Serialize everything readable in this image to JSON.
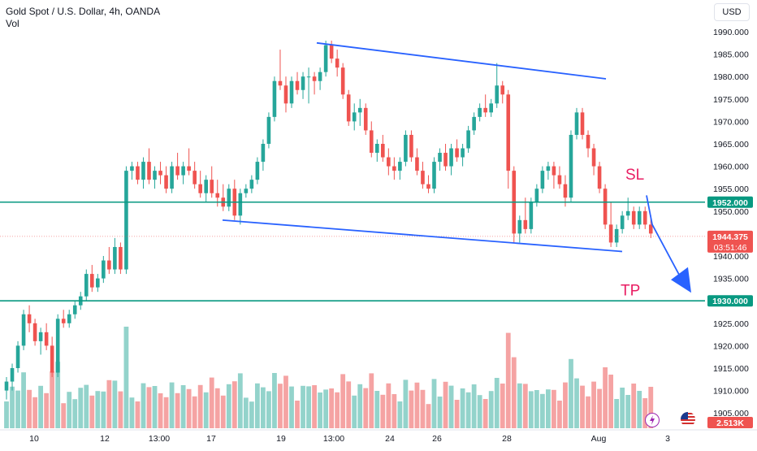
{
  "header": {
    "title": "Gold Spot / U.S. Dollar, 4h, OANDA",
    "volume_label": "Vol",
    "currency_button": "USD"
  },
  "annotations": {
    "sl_label": "SL",
    "tp_label": "TP"
  },
  "price_tags": {
    "resistance": "1952.000",
    "target": "1930.000",
    "current_price": "1944.375",
    "countdown": "03:51:46",
    "volume_value": "2.513K"
  },
  "colors": {
    "up": "#26a69a",
    "down": "#ef5350",
    "up_volume": "#93d3cb",
    "down_volume": "#f5a3a3",
    "channel": "#2962ff",
    "level": "#089981",
    "annotation": "#e91e63"
  },
  "icons": {
    "lightning": "lightning-icon",
    "flag": "us-flag-icon"
  },
  "chart_data": {
    "type": "candlestick",
    "symbol": "Gold Spot / U.S. Dollar",
    "interval": "4h",
    "y_axis": {
      "range": [
        1905,
        1992
      ],
      "ticks": [
        "1990.000",
        "1985.000",
        "1980.000",
        "1975.000",
        "1970.000",
        "1965.000",
        "1960.000",
        "1955.000",
        "1950.000",
        "1945.000",
        "1940.000",
        "1935.000",
        "1925.000",
        "1920.000",
        "1915.000",
        "1910.000",
        "1905.000"
      ]
    },
    "x_axis": {
      "ticks": [
        "10",
        "12",
        "13:00",
        "17",
        "19",
        "13:00",
        "24",
        "26",
        "28",
        "Aug",
        "3"
      ]
    },
    "horizontal_levels": [
      1952.0,
      1930.0
    ],
    "current_price": 1944.375,
    "trend_lines": [
      {
        "from": [
          0.0,
          1987.5
        ],
        "to": [
          0.0,
          1979.5
        ],
        "role": "channel-top"
      },
      {
        "from": [
          0.0,
          1948.0
        ],
        "to": [
          0.0,
          1941.0
        ],
        "role": "channel-bottom"
      }
    ],
    "candles": [
      [
        1910,
        1913,
        1908,
        1912
      ],
      [
        1912,
        1916,
        1910,
        1915
      ],
      [
        1915,
        1921,
        1914,
        1920
      ],
      [
        1920,
        1928,
        1919,
        1927
      ],
      [
        1927,
        1929,
        1923,
        1925
      ],
      [
        1925,
        1926,
        1920,
        1921
      ],
      [
        1921,
        1924,
        1918,
        1923
      ],
      [
        1923,
        1925,
        1919,
        1920
      ],
      [
        1920,
        1922,
        1913,
        1914
      ],
      [
        1914,
        1927,
        1913,
        1926
      ],
      [
        1926,
        1928,
        1924,
        1925
      ],
      [
        1925,
        1928,
        1924,
        1927
      ],
      [
        1927,
        1930,
        1926,
        1929
      ],
      [
        1929,
        1932,
        1928,
        1931
      ],
      [
        1931,
        1937,
        1930,
        1936
      ],
      [
        1936,
        1938,
        1932,
        1933
      ],
      [
        1933,
        1936,
        1932,
        1935
      ],
      [
        1935,
        1940,
        1934,
        1939
      ],
      [
        1939,
        1942,
        1936,
        1937
      ],
      [
        1937,
        1944,
        1936,
        1942
      ],
      [
        1942,
        1943,
        1936,
        1937
      ],
      [
        1937,
        1960,
        1936,
        1959
      ],
      [
        1959,
        1961,
        1957,
        1960
      ],
      [
        1960,
        1961,
        1956,
        1957
      ],
      [
        1957,
        1962,
        1955,
        1961
      ],
      [
        1961,
        1964,
        1956,
        1957
      ],
      [
        1957,
        1960,
        1955,
        1959
      ],
      [
        1959,
        1961,
        1956,
        1958
      ],
      [
        1958,
        1960,
        1954,
        1955
      ],
      [
        1955,
        1961,
        1954,
        1960
      ],
      [
        1960,
        1963,
        1957,
        1958
      ],
      [
        1958,
        1961,
        1956,
        1960
      ],
      [
        1960,
        1964,
        1958,
        1959
      ],
      [
        1959,
        1961,
        1955,
        1956
      ],
      [
        1956,
        1959,
        1953,
        1954
      ],
      [
        1954,
        1958,
        1952,
        1957
      ],
      [
        1957,
        1960,
        1953,
        1954
      ],
      [
        1954,
        1957,
        1951,
        1953
      ],
      [
        1953,
        1956,
        1950,
        1951
      ],
      [
        1951,
        1956,
        1950,
        1955
      ],
      [
        1955,
        1957,
        1948,
        1949
      ],
      [
        1949,
        1955,
        1947,
        1954
      ],
      [
        1954,
        1956,
        1953,
        1955
      ],
      [
        1955,
        1958,
        1954,
        1957
      ],
      [
        1957,
        1962,
        1956,
        1961
      ],
      [
        1961,
        1966,
        1959,
        1965
      ],
      [
        1965,
        1972,
        1964,
        1971
      ],
      [
        1971,
        1980,
        1970,
        1979
      ],
      [
        1979,
        1986,
        1977,
        1978
      ],
      [
        1978,
        1980,
        1972,
        1974
      ],
      [
        1974,
        1980,
        1973,
        1979
      ],
      [
        1979,
        1981,
        1976,
        1977
      ],
      [
        1977,
        1981,
        1975,
        1980
      ],
      [
        1980,
        1982,
        1974,
        1980
      ],
      [
        1980,
        1981,
        1976,
        1979
      ],
      [
        1979,
        1982,
        1977,
        1981
      ],
      [
        1981,
        1988,
        1980,
        1987
      ],
      [
        1987,
        1988,
        1983,
        1984
      ],
      [
        1984,
        1986,
        1980,
        1982
      ],
      [
        1982,
        1983,
        1975,
        1976
      ],
      [
        1976,
        1977,
        1969,
        1970
      ],
      [
        1970,
        1974,
        1968,
        1972
      ],
      [
        1972,
        1975,
        1969,
        1973
      ],
      [
        1973,
        1974,
        1967,
        1968
      ],
      [
        1968,
        1970,
        1962,
        1963
      ],
      [
        1963,
        1966,
        1961,
        1965
      ],
      [
        1965,
        1967,
        1961,
        1962
      ],
      [
        1962,
        1964,
        1958,
        1960
      ],
      [
        1960,
        1962,
        1957,
        1959
      ],
      [
        1959,
        1962,
        1957,
        1961
      ],
      [
        1961,
        1968,
        1960,
        1967
      ],
      [
        1967,
        1968,
        1961,
        1962
      ],
      [
        1962,
        1964,
        1958,
        1959
      ],
      [
        1959,
        1961,
        1955,
        1956
      ],
      [
        1956,
        1958,
        1954,
        1955
      ],
      [
        1955,
        1962,
        1954,
        1961
      ],
      [
        1961,
        1964,
        1959,
        1963
      ],
      [
        1963,
        1965,
        1959,
        1960
      ],
      [
        1960,
        1965,
        1958,
        1964
      ],
      [
        1964,
        1966,
        1961,
        1962
      ],
      [
        1962,
        1965,
        1960,
        1964
      ],
      [
        1964,
        1969,
        1963,
        1968
      ],
      [
        1968,
        1972,
        1967,
        1971
      ],
      [
        1971,
        1974,
        1970,
        1973
      ],
      [
        1973,
        1976,
        1971,
        1972
      ],
      [
        1972,
        1975,
        1971,
        1974
      ],
      [
        1974,
        1983,
        1973,
        1978
      ],
      [
        1978,
        1979,
        1974,
        1976
      ],
      [
        1976,
        1977,
        1955,
        1959
      ],
      [
        1959,
        1960,
        1943,
        1945
      ],
      [
        1945,
        1949,
        1943,
        1948
      ],
      [
        1948,
        1953,
        1945,
        1946
      ],
      [
        1946,
        1953,
        1945,
        1952
      ],
      [
        1952,
        1956,
        1951,
        1955
      ],
      [
        1955,
        1960,
        1954,
        1959
      ],
      [
        1959,
        1961,
        1957,
        1960
      ],
      [
        1960,
        1961,
        1955,
        1958
      ],
      [
        1958,
        1960,
        1955,
        1956
      ],
      [
        1956,
        1958,
        1951,
        1953
      ],
      [
        1953,
        1968,
        1952,
        1967
      ],
      [
        1967,
        1973,
        1966,
        1972
      ],
      [
        1972,
        1973,
        1966,
        1967
      ],
      [
        1967,
        1968,
        1962,
        1964
      ],
      [
        1964,
        1965,
        1958,
        1960
      ],
      [
        1960,
        1961,
        1954,
        1955
      ],
      [
        1955,
        1956,
        1946,
        1947
      ],
      [
        1947,
        1952,
        1942,
        1943
      ],
      [
        1943,
        1947,
        1942,
        1946
      ],
      [
        1946,
        1950,
        1945,
        1949
      ],
      [
        1949,
        1953,
        1948,
        1950
      ],
      [
        1950,
        1951,
        1946,
        1947
      ],
      [
        1947,
        1951,
        1946,
        1950
      ],
      [
        1950,
        1951,
        1946,
        1947
      ],
      [
        1947,
        1949,
        1944,
        1945
      ]
    ],
    "volume_panel": {
      "current": "2.513K"
    },
    "annotations": [
      {
        "text": "SL",
        "price": 1958.5
      },
      {
        "text": "TP",
        "price": 1932.5
      }
    ],
    "projection_arrow": {
      "from_price": 1948.5,
      "to_price": 1932.5
    }
  }
}
